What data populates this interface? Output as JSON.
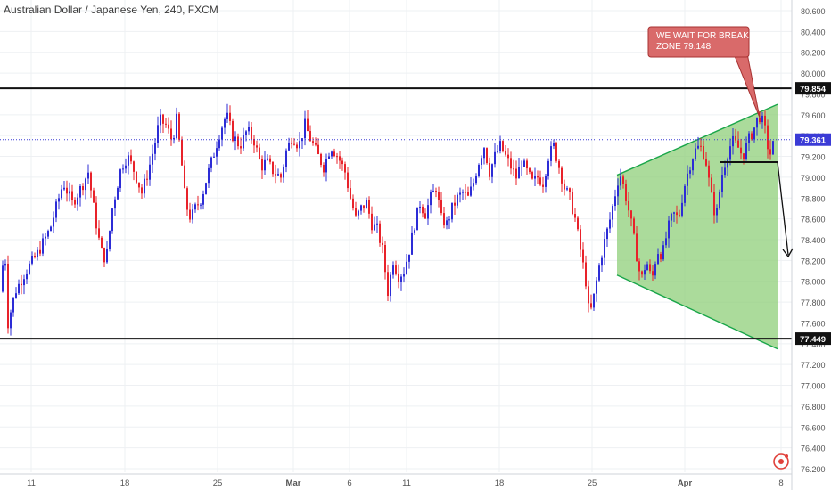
{
  "chart_title": "Australian Dollar / Japanese Yen, 240, FXCM",
  "annotation": {
    "line1": "WE WAIT FOR BREAK",
    "line2": "ZONE 79.148"
  },
  "price_labels": {
    "resistance": "79.854",
    "current": "79.361",
    "support": "77.449"
  },
  "colors": {
    "up_candle": "#2c2cd6",
    "down_candle": "#e8222a",
    "current_price_line": "#3b3bd6",
    "triangle_fill": "#8fcf7a",
    "triangle_edge": "#1aa64a",
    "callout_fill": "#d96a6a",
    "callout_border": "#a83232"
  },
  "logo_icon": "tradingview-logo-icon",
  "chart_data": {
    "type": "candlestick",
    "title": "Australian Dollar / Japanese Yen, 240, FXCM",
    "ylim": [
      76.2,
      80.7
    ],
    "yticks": [
      "80.600",
      "80.400",
      "80.200",
      "80.000",
      "79.800",
      "79.600",
      "79.400",
      "79.200",
      "79.000",
      "78.800",
      "78.600",
      "78.400",
      "78.200",
      "78.000",
      "77.800",
      "77.600",
      "77.400",
      "77.200",
      "77.000",
      "76.800",
      "76.600",
      "76.400",
      "76.200"
    ],
    "xticks": [
      "11",
      "18",
      "25",
      "Mar",
      "6",
      "11",
      "18",
      "25",
      "Apr",
      "8"
    ],
    "horizontal_levels": [
      79.854,
      77.449
    ],
    "current_price": 79.361,
    "break_level": 79.148,
    "grid": true,
    "close_path": [
      [
        0,
        77.9
      ],
      [
        4,
        78.4
      ],
      [
        8,
        77.6
      ],
      [
        16,
        77.9
      ],
      [
        28,
        78.1
      ],
      [
        40,
        78.25
      ],
      [
        55,
        78.5
      ],
      [
        70,
        78.95
      ],
      [
        80,
        78.75
      ],
      [
        90,
        78.9
      ],
      [
        98,
        79.05
      ],
      [
        105,
        78.65
      ],
      [
        112,
        78.3
      ],
      [
        118,
        78.2
      ],
      [
        125,
        78.7
      ],
      [
        135,
        79.1
      ],
      [
        142,
        79.2
      ],
      [
        150,
        79.05
      ],
      [
        158,
        78.85
      ],
      [
        165,
        79.05
      ],
      [
        172,
        79.3
      ],
      [
        178,
        79.55
      ],
      [
        185,
        79.5
      ],
      [
        192,
        79.35
      ],
      [
        197,
        79.55
      ],
      [
        202,
        79.2
      ],
      [
        207,
        78.75
      ],
      [
        213,
        78.6
      ],
      [
        218,
        78.7
      ],
      [
        225,
        78.8
      ],
      [
        231,
        79.0
      ],
      [
        238,
        79.2
      ],
      [
        246,
        79.45
      ],
      [
        253,
        79.6
      ],
      [
        260,
        79.4
      ],
      [
        268,
        79.3
      ],
      [
        276,
        79.45
      ],
      [
        284,
        79.35
      ],
      [
        292,
        79.1
      ],
      [
        298,
        79.15
      ],
      [
        306,
        79.05
      ],
      [
        314,
        79.0
      ],
      [
        320,
        79.25
      ],
      [
        327,
        79.4
      ],
      [
        334,
        79.3
      ],
      [
        341,
        79.5
      ],
      [
        348,
        79.35
      ],
      [
        356,
        79.2
      ],
      [
        362,
        79.1
      ],
      [
        370,
        79.3
      ],
      [
        378,
        79.2
      ],
      [
        386,
        79.05
      ],
      [
        392,
        78.8
      ],
      [
        398,
        78.6
      ],
      [
        404,
        78.7
      ],
      [
        410,
        78.75
      ],
      [
        416,
        78.55
      ],
      [
        422,
        78.5
      ],
      [
        428,
        78.3
      ],
      [
        434,
        77.9
      ],
      [
        440,
        78.2
      ],
      [
        446,
        78.05
      ],
      [
        452,
        78.1
      ],
      [
        458,
        78.3
      ],
      [
        464,
        78.55
      ],
      [
        470,
        78.75
      ],
      [
        476,
        78.65
      ],
      [
        482,
        78.8
      ],
      [
        488,
        78.9
      ],
      [
        494,
        78.6
      ],
      [
        500,
        78.55
      ],
      [
        506,
        78.7
      ],
      [
        512,
        78.8
      ],
      [
        518,
        78.85
      ],
      [
        524,
        78.8
      ],
      [
        530,
        78.95
      ],
      [
        536,
        79.15
      ],
      [
        542,
        79.3
      ],
      [
        548,
        79.05
      ],
      [
        554,
        79.2
      ],
      [
        560,
        79.3
      ],
      [
        566,
        79.2
      ],
      [
        572,
        79.1
      ],
      [
        578,
        79.0
      ],
      [
        584,
        79.15
      ],
      [
        590,
        79.05
      ],
      [
        596,
        78.95
      ],
      [
        602,
        79.0
      ],
      [
        608,
        78.95
      ],
      [
        614,
        79.2
      ],
      [
        620,
        79.3
      ],
      [
        626,
        79.1
      ],
      [
        632,
        78.9
      ],
      [
        638,
        78.8
      ],
      [
        644,
        78.6
      ],
      [
        650,
        78.3
      ],
      [
        656,
        78.0
      ],
      [
        660,
        77.65
      ],
      [
        664,
        77.8
      ],
      [
        670,
        78.1
      ],
      [
        676,
        78.35
      ],
      [
        682,
        78.55
      ],
      [
        688,
        78.8
      ],
      [
        694,
        79.05
      ],
      [
        700,
        78.85
      ],
      [
        706,
        78.6
      ],
      [
        712,
        78.3
      ],
      [
        718,
        78.0
      ],
      [
        724,
        78.2
      ],
      [
        730,
        78.0
      ],
      [
        736,
        78.3
      ],
      [
        742,
        78.25
      ],
      [
        748,
        78.5
      ],
      [
        754,
        78.65
      ],
      [
        760,
        78.6
      ],
      [
        766,
        78.9
      ],
      [
        772,
        79.1
      ],
      [
        778,
        79.25
      ],
      [
        784,
        79.3
      ],
      [
        790,
        79.2
      ],
      [
        796,
        78.85
      ],
      [
        802,
        78.6
      ],
      [
        808,
        79.0
      ],
      [
        814,
        79.2
      ],
      [
        820,
        79.35
      ],
      [
        826,
        79.3
      ],
      [
        832,
        79.2
      ],
      [
        838,
        79.35
      ],
      [
        844,
        79.45
      ],
      [
        850,
        79.6
      ],
      [
        856,
        79.5
      ],
      [
        862,
        79.2
      ],
      [
        868,
        79.36
      ]
    ],
    "triangle": {
      "upper_left": 79.02,
      "upper_right": 79.7,
      "lower_left": 78.06,
      "lower_right": 77.35
    }
  }
}
